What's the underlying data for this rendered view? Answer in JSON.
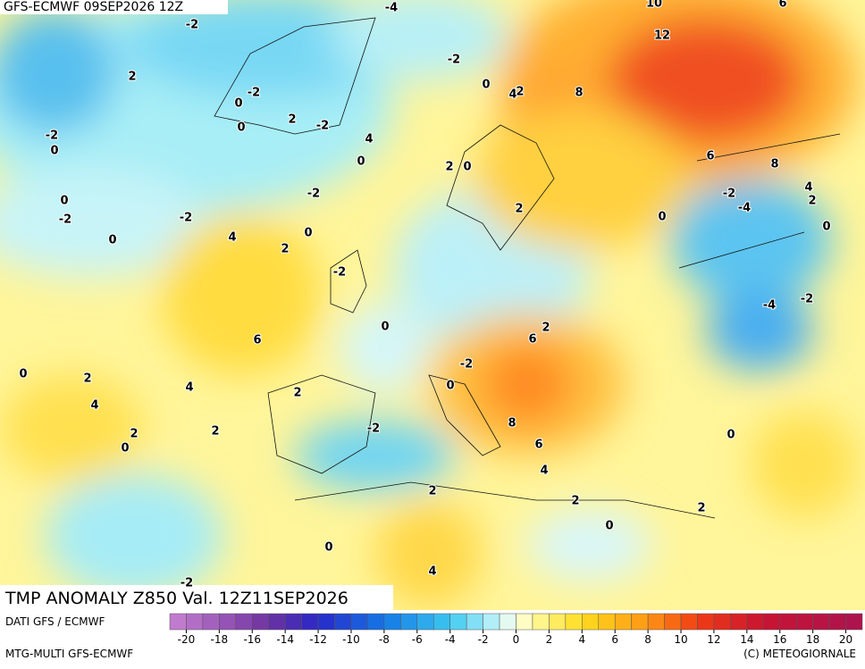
{
  "header": "GFS-ECMWF 09SEP2026 12Z",
  "title": "TMP ANOMALY Z850 Val. 12Z11SEP2026",
  "footer": {
    "source": "DATI GFS / ECMWF",
    "model": "MTG-MULTI GFS-ECMWF",
    "copyright": "(C) METEOGIORNALE"
  },
  "colorbar": {
    "lim": [
      -21,
      21
    ],
    "ticks": [
      -20,
      -18,
      -16,
      -14,
      -12,
      -10,
      -8,
      -6,
      -4,
      -2,
      0,
      2,
      4,
      6,
      8,
      10,
      12,
      14,
      16,
      18,
      20
    ]
  },
  "contour_labels": [
    -4,
    -2,
    10,
    6,
    12,
    -2,
    2,
    0,
    4,
    2,
    8,
    -2,
    0,
    2,
    -2,
    0,
    4,
    -2,
    0,
    0,
    2,
    0,
    6,
    8,
    -2,
    -2,
    4,
    2,
    0,
    -2,
    -2,
    -4,
    2,
    0,
    0,
    4,
    0,
    0,
    2,
    -2,
    -4,
    -2,
    0,
    6,
    2,
    6,
    0,
    2,
    -2,
    0,
    4,
    2,
    4,
    8,
    -2,
    2,
    2,
    0,
    6,
    0,
    4,
    2,
    2,
    2,
    0,
    0,
    4,
    -2
  ]
}
